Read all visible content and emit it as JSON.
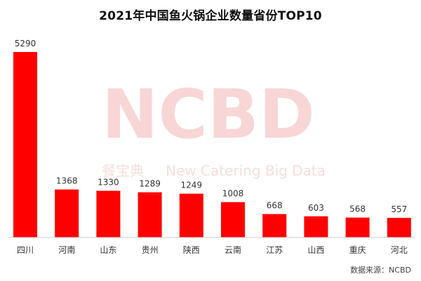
{
  "chart_data": {
    "type": "bar",
    "title": "2021年中国鱼火锅企业数量省份TOP10",
    "categories": [
      "四川",
      "河南",
      "山东",
      "贵州",
      "陕西",
      "云南",
      "江苏",
      "山西",
      "重庆",
      "河北"
    ],
    "values": [
      5290,
      1368,
      1330,
      1289,
      1249,
      1008,
      668,
      603,
      568,
      557
    ],
    "ylim": [
      0,
      5290
    ],
    "grid": false,
    "bar_color": "#ff0000",
    "xlabel": "",
    "ylabel": ""
  },
  "watermark": {
    "brand": "NCBD",
    "cn_name": "餐宝典",
    "en_name": "New Catering Big Data"
  },
  "source": "数据来源：NCBD"
}
